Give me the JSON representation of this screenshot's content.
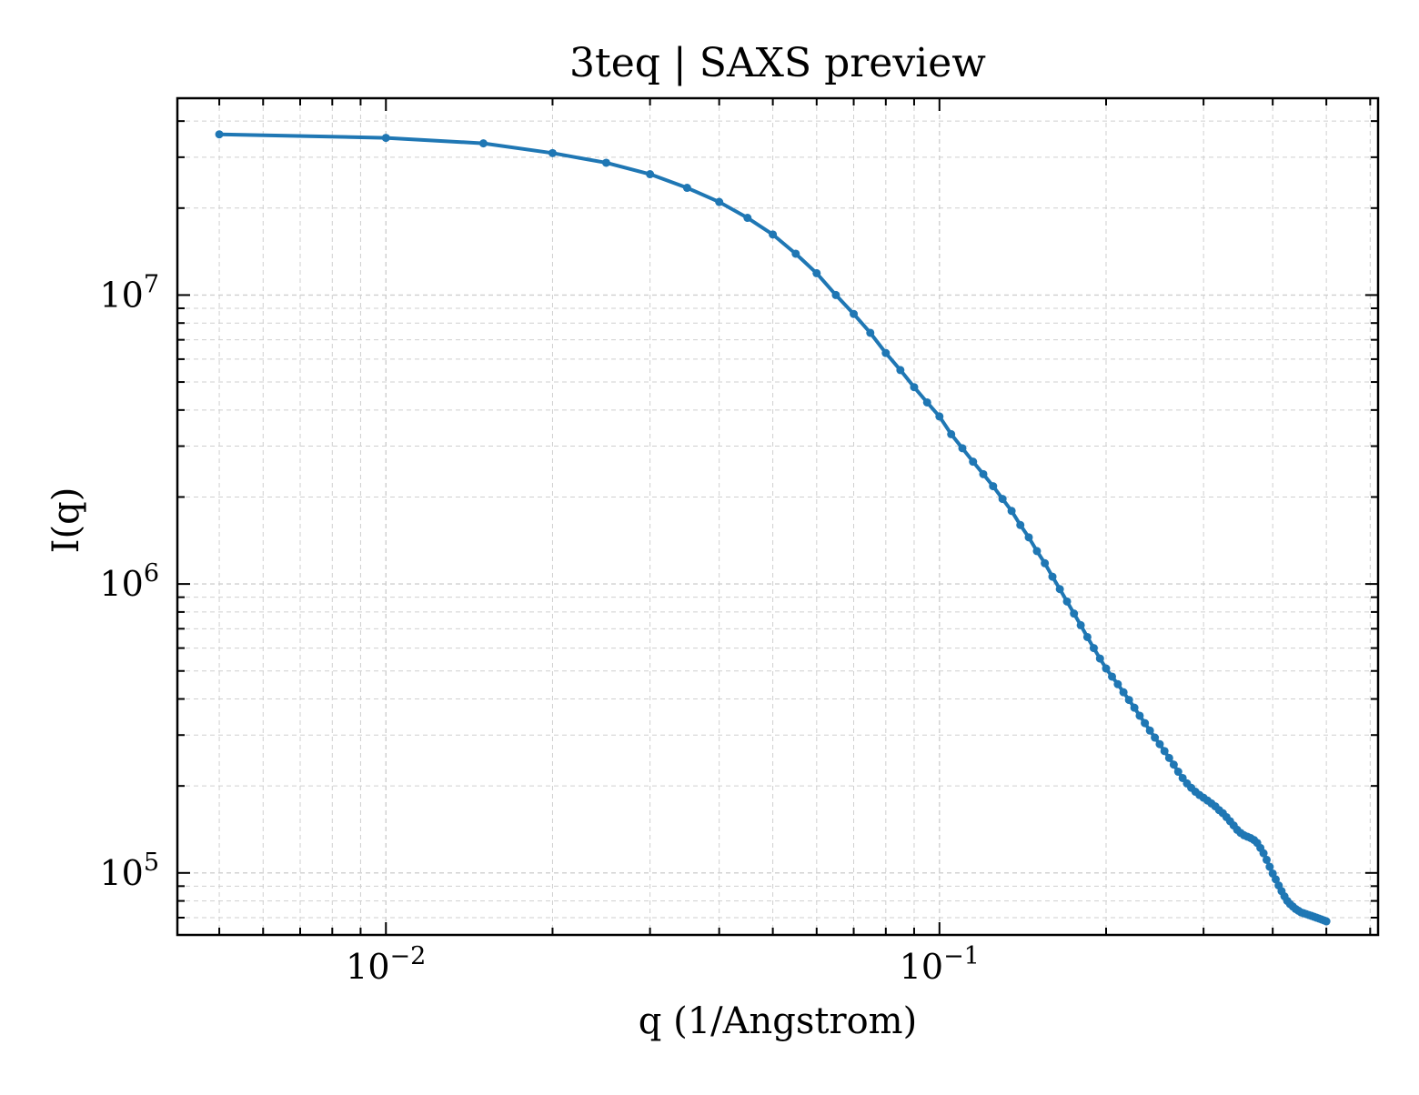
{
  "chart_data": {
    "type": "line",
    "title": "3teq | SAXS preview",
    "xlabel": "q (1/Angstrom)",
    "ylabel": "I(q)",
    "xscale": "log",
    "yscale": "log",
    "xlim": [
      0.0042,
      0.62
    ],
    "ylim": [
      61000,
      48000000
    ],
    "grid": true,
    "legend": "none",
    "x_ticks": [
      {
        "value": 0.01,
        "base": "10",
        "exp": "−2"
      },
      {
        "value": 0.1,
        "base": "10",
        "exp": "−1"
      }
    ],
    "y_ticks": [
      {
        "value": 100000,
        "base": "10",
        "exp": "5"
      },
      {
        "value": 1000000,
        "base": "10",
        "exp": "6"
      },
      {
        "value": 10000000,
        "base": "10",
        "exp": "7"
      }
    ],
    "series": [
      {
        "color": "#1f77b4",
        "x": [
          0.005,
          0.01,
          0.015,
          0.02,
          0.025,
          0.03,
          0.035,
          0.04,
          0.045,
          0.05,
          0.055,
          0.06,
          0.065,
          0.07,
          0.075,
          0.08,
          0.085,
          0.09,
          0.095,
          0.1,
          0.105,
          0.11,
          0.115,
          0.12,
          0.125,
          0.13,
          0.135,
          0.14,
          0.145,
          0.15,
          0.155,
          0.16,
          0.165,
          0.17,
          0.175,
          0.18,
          0.185,
          0.19,
          0.195,
          0.2,
          0.205,
          0.21,
          0.215,
          0.22,
          0.225,
          0.23,
          0.235,
          0.24,
          0.245,
          0.25,
          0.255,
          0.26,
          0.265,
          0.27,
          0.275,
          0.28,
          0.285,
          0.29,
          0.295,
          0.3,
          0.305,
          0.31,
          0.315,
          0.32,
          0.325,
          0.33,
          0.335,
          0.34,
          0.345,
          0.35,
          0.355,
          0.36,
          0.365,
          0.37,
          0.375,
          0.38,
          0.385,
          0.39,
          0.395,
          0.4,
          0.405,
          0.41,
          0.415,
          0.42,
          0.425,
          0.43,
          0.435,
          0.44,
          0.445,
          0.45,
          0.455,
          0.46,
          0.465,
          0.47,
          0.475,
          0.48,
          0.485,
          0.49,
          0.495,
          0.5
        ],
        "y": [
          36000000,
          35000000,
          33500000,
          31000000,
          28700000,
          26200000,
          23500000,
          21000000,
          18500000,
          16200000,
          13900000,
          11900000,
          10000000,
          8600000,
          7400000,
          6300000,
          5500000,
          4800000,
          4250000,
          3800000,
          3300000,
          2950000,
          2650000,
          2400000,
          2180000,
          1970000,
          1790000,
          1600000,
          1450000,
          1300000,
          1180000,
          1060000,
          960000,
          870000,
          790000,
          720000,
          655000,
          600000,
          552000,
          510000,
          478000,
          450000,
          422000,
          397000,
          373000,
          350000,
          330000,
          311000,
          294000,
          279000,
          264000,
          250000,
          237000,
          224000,
          213000,
          204000,
          197000,
          191000,
          186000,
          182000,
          178000,
          174000,
          170000,
          165000,
          161000,
          156000,
          151000,
          146000,
          141000,
          137500,
          135000,
          133500,
          132000,
          130000,
          127000,
          122000,
          117000,
          111000,
          105000,
          99500,
          95000,
          90500,
          86500,
          83000,
          80000,
          78000,
          76500,
          75000,
          74000,
          73000,
          72500,
          72000,
          71500,
          71000,
          70500,
          70000,
          69500,
          69000,
          68500,
          68000
        ]
      }
    ]
  }
}
